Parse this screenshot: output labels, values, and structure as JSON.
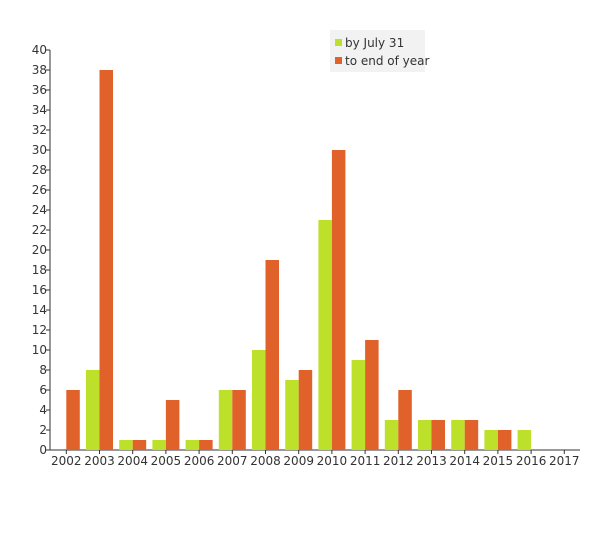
{
  "chart_data": {
    "type": "bar",
    "categories": [
      "2002",
      "2003",
      "2004",
      "2005",
      "2006",
      "2007",
      "2008",
      "2009",
      "2010",
      "2011",
      "2012",
      "2013",
      "2014",
      "2015",
      "2016",
      "2017"
    ],
    "series": [
      {
        "name": "by July 31",
        "color": "#bde12a",
        "values": [
          0,
          8,
          1,
          1,
          1,
          6,
          10,
          7,
          23,
          9,
          3,
          3,
          3,
          2,
          2,
          0
        ]
      },
      {
        "name": "to end of year",
        "color": "#e0622a",
        "values": [
          6,
          38,
          1,
          5,
          1,
          6,
          19,
          8,
          30,
          11,
          6,
          3,
          3,
          2,
          0,
          0
        ]
      }
    ],
    "ylim": [
      0,
      40
    ],
    "yticks": [
      0,
      2,
      4,
      6,
      8,
      10,
      12,
      14,
      16,
      18,
      20,
      22,
      24,
      26,
      28,
      30,
      32,
      34,
      36,
      38,
      40
    ],
    "grid": false,
    "legend": {
      "position": "top-right",
      "background": "#f2f2f2"
    },
    "axis_color": "#333333"
  }
}
